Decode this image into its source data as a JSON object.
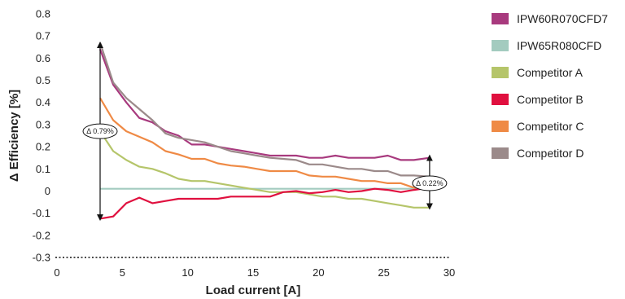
{
  "chart_data": {
    "type": "line",
    "xlabel": "Load current [A]",
    "ylabel": "Δ Efficiency [%]",
    "xlim": [
      0,
      30
    ],
    "ylim": [
      -0.3,
      0.8
    ],
    "xticks": [
      "0",
      "5",
      "10",
      "15",
      "20",
      "25",
      "30"
    ],
    "yticks": [
      "0.8",
      "0.7",
      "0.6",
      "0.5",
      "0.4",
      "0.3",
      "0.2",
      "0.1",
      "0",
      "-0.1",
      "-0.2",
      "-0.3"
    ],
    "grid": false,
    "legend": "right",
    "series": [
      {
        "name": "IPW60R070CFD7",
        "color": "#a83a7e",
        "points": [
          [
            3.3,
            0.64
          ],
          [
            4.3,
            0.48
          ],
          [
            5.3,
            0.4
          ],
          [
            6.3,
            0.33
          ],
          [
            7.3,
            0.31
          ],
          [
            8.3,
            0.27
          ],
          [
            9.3,
            0.25
          ],
          [
            10.3,
            0.21
          ],
          [
            11.3,
            0.21
          ],
          [
            12.3,
            0.2
          ],
          [
            13.3,
            0.19
          ],
          [
            14.3,
            0.18
          ],
          [
            15.3,
            0.17
          ],
          [
            16.3,
            0.16
          ],
          [
            17.3,
            0.16
          ],
          [
            18.3,
            0.16
          ],
          [
            19.3,
            0.15
          ],
          [
            20.3,
            0.15
          ],
          [
            21.3,
            0.16
          ],
          [
            22.3,
            0.15
          ],
          [
            23.3,
            0.15
          ],
          [
            24.3,
            0.15
          ],
          [
            25.3,
            0.16
          ],
          [
            26.3,
            0.14
          ],
          [
            27.3,
            0.14
          ],
          [
            28.5,
            0.15
          ]
        ]
      },
      {
        "name": "IPW65R080CFD",
        "color": "#a3cbbf",
        "points": [
          [
            3.3,
            0.01
          ],
          [
            28.5,
            0.01
          ]
        ]
      },
      {
        "name": "Competitor A",
        "color": "#b5c56a",
        "points": [
          [
            3.3,
            0.27
          ],
          [
            4.3,
            0.18
          ],
          [
            5.3,
            0.14
          ],
          [
            6.3,
            0.11
          ],
          [
            7.3,
            0.1
          ],
          [
            8.3,
            0.08
          ],
          [
            9.3,
            0.055
          ],
          [
            10.3,
            0.045
          ],
          [
            11.3,
            0.045
          ],
          [
            12.3,
            0.035
          ],
          [
            13.3,
            0.025
          ],
          [
            14.3,
            0.015
          ],
          [
            15.3,
            0.005
          ],
          [
            16.3,
            -0.005
          ],
          [
            17.3,
            -0.005
          ],
          [
            18.3,
            -0.005
          ],
          [
            19.3,
            -0.015
          ],
          [
            20.3,
            -0.025
          ],
          [
            21.3,
            -0.025
          ],
          [
            22.3,
            -0.035
          ],
          [
            23.3,
            -0.035
          ],
          [
            24.3,
            -0.045
          ],
          [
            25.3,
            -0.055
          ],
          [
            26.3,
            -0.065
          ],
          [
            27.3,
            -0.075
          ],
          [
            28.5,
            -0.075
          ]
        ]
      },
      {
        "name": "Competitor B",
        "color": "#e0103f",
        "points": [
          [
            3.3,
            -0.125
          ],
          [
            4.3,
            -0.115
          ],
          [
            5.3,
            -0.055
          ],
          [
            6.3,
            -0.03
          ],
          [
            7.3,
            -0.055
          ],
          [
            8.3,
            -0.045
          ],
          [
            9.3,
            -0.035
          ],
          [
            10.3,
            -0.035
          ],
          [
            11.3,
            -0.035
          ],
          [
            12.3,
            -0.035
          ],
          [
            13.3,
            -0.025
          ],
          [
            14.3,
            -0.025
          ],
          [
            15.3,
            -0.025
          ],
          [
            16.3,
            -0.025
          ],
          [
            17.3,
            -0.005
          ],
          [
            18.3,
            0.0
          ],
          [
            19.3,
            -0.01
          ],
          [
            20.3,
            -0.005
          ],
          [
            21.3,
            0.005
          ],
          [
            22.3,
            -0.005
          ],
          [
            23.3,
            0.0
          ],
          [
            24.3,
            0.01
          ],
          [
            25.3,
            0.005
          ],
          [
            26.3,
            -0.005
          ],
          [
            27.3,
            0.005
          ],
          [
            28.5,
            0.015
          ]
        ]
      },
      {
        "name": "Competitor C",
        "color": "#ef8a45",
        "points": [
          [
            3.3,
            0.42
          ],
          [
            4.3,
            0.32
          ],
          [
            5.3,
            0.27
          ],
          [
            6.3,
            0.245
          ],
          [
            7.3,
            0.22
          ],
          [
            8.3,
            0.18
          ],
          [
            9.3,
            0.165
          ],
          [
            10.3,
            0.145
          ],
          [
            11.3,
            0.145
          ],
          [
            12.3,
            0.125
          ],
          [
            13.3,
            0.115
          ],
          [
            14.3,
            0.11
          ],
          [
            15.3,
            0.1
          ],
          [
            16.3,
            0.09
          ],
          [
            17.3,
            0.09
          ],
          [
            18.3,
            0.09
          ],
          [
            19.3,
            0.07
          ],
          [
            20.3,
            0.065
          ],
          [
            21.3,
            0.065
          ],
          [
            22.3,
            0.055
          ],
          [
            23.3,
            0.045
          ],
          [
            24.3,
            0.045
          ],
          [
            25.3,
            0.035
          ],
          [
            26.3,
            0.035
          ],
          [
            27.3,
            0.015
          ],
          [
            28.5,
            0.015
          ]
        ]
      },
      {
        "name": "Competitor D",
        "color": "#9b8a8a",
        "points": [
          [
            3.3,
            0.67
          ],
          [
            4.3,
            0.49
          ],
          [
            5.3,
            0.42
          ],
          [
            6.3,
            0.37
          ],
          [
            7.3,
            0.32
          ],
          [
            8.3,
            0.26
          ],
          [
            9.3,
            0.24
          ],
          [
            10.3,
            0.23
          ],
          [
            11.3,
            0.22
          ],
          [
            12.3,
            0.2
          ],
          [
            13.3,
            0.18
          ],
          [
            14.3,
            0.17
          ],
          [
            15.3,
            0.16
          ],
          [
            16.3,
            0.15
          ],
          [
            17.3,
            0.145
          ],
          [
            18.3,
            0.14
          ],
          [
            19.3,
            0.12
          ],
          [
            20.3,
            0.12
          ],
          [
            21.3,
            0.11
          ],
          [
            22.3,
            0.1
          ],
          [
            23.3,
            0.1
          ],
          [
            24.3,
            0.09
          ],
          [
            25.3,
            0.09
          ],
          [
            26.3,
            0.07
          ],
          [
            27.3,
            0.07
          ],
          [
            28.5,
            0.065
          ]
        ]
      }
    ],
    "annotations": [
      {
        "text": "Δ 0.79%",
        "x": 3.3,
        "y_from": -0.12,
        "y_to": 0.66,
        "label_y": 0.27
      },
      {
        "text": "Δ 0.22%",
        "x": 28.5,
        "y_from": -0.07,
        "y_to": 0.15,
        "label_y": 0.035
      }
    ]
  }
}
